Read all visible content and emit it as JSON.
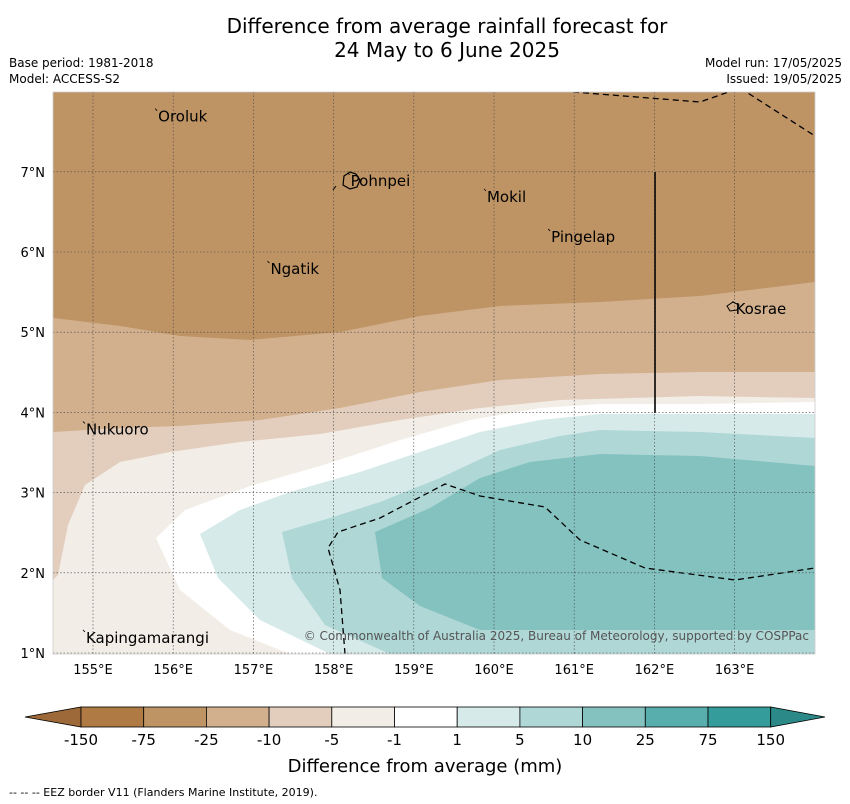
{
  "title_line1": "Difference from average rainfall forecast for",
  "title_line2": "24 May to 6 June 2025",
  "base_period": "Base period: 1981-2018",
  "model": "Model: ACCESS-S2",
  "model_run": "Model run: 17/05/2025",
  "issued": "Issued: 19/05/2025",
  "copyright": "© Commonwealth of Australia 2025, Bureau of Meteorology, supported by COSPPac",
  "footer": "--  --  -- EEZ border V11 (Flanders Marine Institute, 2019).",
  "map": {
    "lon_range": [
      154.5,
      164.0
    ],
    "lat_range": [
      1.0,
      8.0
    ],
    "lon_ticks": [
      "155°E",
      "156°E",
      "157°E",
      "158°E",
      "159°E",
      "160°E",
      "161°E",
      "162°E",
      "163°E"
    ],
    "lat_ticks": [
      "1°N",
      "2°N",
      "3°N",
      "4°N",
      "5°N",
      "6°N",
      "7°N"
    ],
    "places": [
      {
        "name": "Oroluk",
        "lon": 155.8,
        "lat": 7.7
      },
      {
        "name": "Pohnpei",
        "lon": 158.2,
        "lat": 6.9
      },
      {
        "name": "Mokil",
        "lon": 159.9,
        "lat": 6.7
      },
      {
        "name": "Pingelap",
        "lon": 160.7,
        "lat": 6.2
      },
      {
        "name": "Ngatik",
        "lon": 157.2,
        "lat": 5.8
      },
      {
        "name": "Kosrae",
        "lon": 163.0,
        "lat": 5.3
      },
      {
        "name": "Nukuoro",
        "lon": 154.9,
        "lat": 3.8
      },
      {
        "name": "Kapingamarangi",
        "lon": 154.9,
        "lat": 1.2
      }
    ]
  },
  "colorbar": {
    "title": "Difference from average (mm)",
    "labels": [
      "-150",
      "-75",
      "-25",
      "-10",
      "-5",
      "-1",
      "1",
      "5",
      "10",
      "25",
      "75",
      "150"
    ],
    "colors": [
      "#b07a45",
      "#bf9465",
      "#d2b08e",
      "#e3cebd",
      "#f2ede6",
      "#ffffff",
      "#d6eae9",
      "#aed7d6",
      "#84c2c0",
      "#57aeac",
      "#349c9a"
    ],
    "under_color": "#9e6938",
    "over_color": "#2b8a88"
  }
}
